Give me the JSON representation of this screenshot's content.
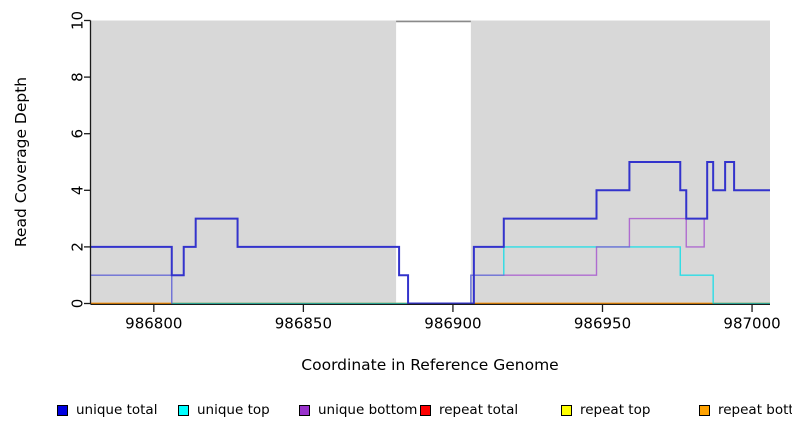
{
  "chart_data": {
    "type": "line",
    "step": true,
    "title": "",
    "xlabel": "Coordinate in Reference Genome",
    "ylabel": "Read Coverage Depth",
    "xlim": [
      986779,
      987006
    ],
    "ylim": [
      0,
      10
    ],
    "x_ticks": [
      986800,
      986850,
      986900,
      986950,
      987000
    ],
    "y_ticks": [
      0,
      2,
      4,
      6,
      8,
      10
    ],
    "grid": false,
    "plot_background": "#d8d8d8",
    "no_data_region": {
      "from": 986881,
      "to": 986906,
      "fill": "#ffffff",
      "cap_color": "#8a8a8a"
    },
    "legend_position": "bottom",
    "series": [
      {
        "name": "repeat total",
        "color": "#e00000",
        "opacity": 1,
        "width": 1.2,
        "skip_zero": false,
        "points": [
          [
            986779,
            0
          ],
          [
            987006,
            0
          ]
        ]
      },
      {
        "name": "repeat top",
        "color": "#ffe800",
        "opacity": 1,
        "width": 1.2,
        "skip_zero": false,
        "points": [
          [
            986779,
            0
          ],
          [
            987006,
            0
          ]
        ]
      },
      {
        "name": "repeat bottom",
        "color": "#ff9100",
        "opacity": 1,
        "width": 1.6,
        "skip_zero": false,
        "points": [
          [
            986779,
            0
          ],
          [
            987006,
            0
          ]
        ]
      },
      {
        "name": "unique top",
        "color": "#00dfe8",
        "opacity": 0.8,
        "width": 1.4,
        "skip_zero": false,
        "points": [
          [
            986779,
            1
          ],
          [
            986806,
            0
          ],
          [
            986906,
            1
          ],
          [
            986917,
            2
          ],
          [
            986976,
            1
          ],
          [
            986987,
            0
          ],
          [
            987006,
            0
          ]
        ]
      },
      {
        "name": "unique bottom",
        "color": "#9933cc",
        "opacity": 0.65,
        "width": 1.4,
        "skip_zero": true,
        "points": [
          [
            986779,
            1
          ],
          [
            986806,
            0
          ],
          [
            986906,
            1
          ],
          [
            986948,
            2
          ],
          [
            986959,
            3
          ],
          [
            986978,
            2
          ],
          [
            986984,
            3
          ],
          [
            986985,
            5
          ],
          [
            986987,
            4
          ],
          [
            986991,
            5
          ],
          [
            986994,
            4
          ],
          [
            987006,
            4
          ]
        ]
      },
      {
        "name": "unique total",
        "color": "#3333cc",
        "opacity": 1,
        "width": 2.0,
        "skip_zero": false,
        "points": [
          [
            986779,
            2
          ],
          [
            986806,
            1
          ],
          [
            986810,
            2
          ],
          [
            986814,
            3
          ],
          [
            986828,
            2
          ],
          [
            986882,
            1
          ],
          [
            986885,
            0
          ],
          [
            986907,
            2
          ],
          [
            986917,
            3
          ],
          [
            986948,
            4
          ],
          [
            986959,
            5
          ],
          [
            986976,
            4
          ],
          [
            986978,
            3
          ],
          [
            986985,
            5
          ],
          [
            986987,
            4
          ],
          [
            986991,
            5
          ],
          [
            986994,
            4
          ],
          [
            987006,
            4
          ]
        ]
      }
    ]
  },
  "legend": {
    "items": [
      {
        "label": "unique total",
        "color": "#0000e0"
      },
      {
        "label": "unique top",
        "color": "#00ffff"
      },
      {
        "label": "unique bottom",
        "color": "#9932cc"
      },
      {
        "label": "repeat total",
        "color": "#ff0000"
      },
      {
        "label": "repeat top",
        "color": "#ffff00"
      },
      {
        "label": "repeat bottom",
        "color": "#ffa200"
      }
    ]
  },
  "axis_titles": {
    "x": "Coordinate in Reference Genome",
    "y": "Read Coverage Depth"
  }
}
